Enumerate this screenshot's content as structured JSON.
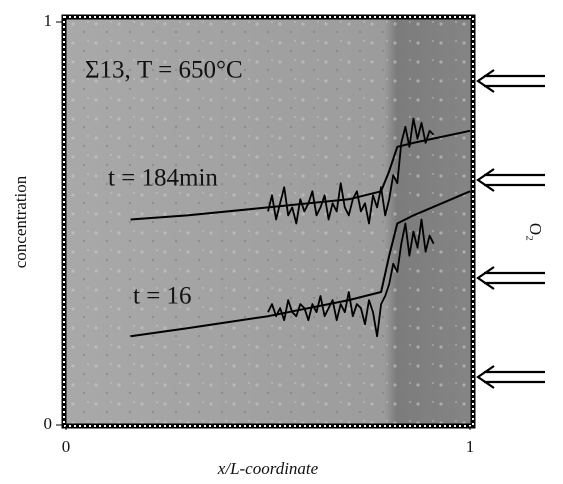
{
  "chart_data": {
    "type": "line",
    "annotations": [
      "Σ13, T = 650°C",
      "t = 184min",
      "t = 16"
    ],
    "xlabel": "x/L-coordinate",
    "ylabel": "concentration",
    "y2label": "O₂",
    "xlim": [
      0,
      1
    ],
    "ylim": [
      0,
      1
    ],
    "xticks": [
      0,
      1
    ],
    "yticks": [
      0,
      1
    ],
    "series": [
      {
        "color": "#000000",
        "x": [
          0.16,
          0.3,
          0.5,
          0.7,
          0.78,
          0.8,
          0.82,
          0.86,
          1.0
        ],
        "values": [
          0.51,
          0.52,
          0.54,
          0.56,
          0.58,
          0.63,
          0.69,
          0.7,
          0.73
        ]
      },
      {
        "color": "#000000",
        "x": [
          0.16,
          0.3,
          0.5,
          0.7,
          0.78,
          0.8,
          0.82,
          0.86,
          1.0
        ],
        "values": [
          0.22,
          0.24,
          0.27,
          0.31,
          0.33,
          0.42,
          0.5,
          0.52,
          0.58
        ]
      },
      {
        "color": "#000000",
        "x": [
          0.5,
          0.51,
          0.52,
          0.53,
          0.54,
          0.55,
          0.56,
          0.57,
          0.58,
          0.59,
          0.6,
          0.61,
          0.62,
          0.63,
          0.64,
          0.65,
          0.66,
          0.67,
          0.68,
          0.69,
          0.7,
          0.71,
          0.72,
          0.73,
          0.74,
          0.75,
          0.76,
          0.77,
          0.78,
          0.79,
          0.8,
          0.81,
          0.82,
          0.83,
          0.84,
          0.85,
          0.86,
          0.87,
          0.88,
          0.89,
          0.9,
          0.91
        ],
        "values": [
          0.53,
          0.57,
          0.51,
          0.55,
          0.59,
          0.52,
          0.54,
          0.5,
          0.56,
          0.53,
          0.55,
          0.58,
          0.52,
          0.54,
          0.57,
          0.51,
          0.55,
          0.53,
          0.6,
          0.54,
          0.52,
          0.56,
          0.58,
          0.53,
          0.55,
          0.5,
          0.57,
          0.54,
          0.59,
          0.52,
          0.56,
          0.62,
          0.6,
          0.7,
          0.74,
          0.69,
          0.76,
          0.71,
          0.75,
          0.7,
          0.73,
          0.72
        ]
      },
      {
        "color": "#000000",
        "x": [
          0.5,
          0.51,
          0.52,
          0.53,
          0.54,
          0.55,
          0.56,
          0.57,
          0.58,
          0.59,
          0.6,
          0.61,
          0.62,
          0.63,
          0.64,
          0.65,
          0.66,
          0.67,
          0.68,
          0.69,
          0.7,
          0.71,
          0.72,
          0.73,
          0.74,
          0.75,
          0.76,
          0.77,
          0.78,
          0.79,
          0.8,
          0.81,
          0.82,
          0.83,
          0.84,
          0.85,
          0.86,
          0.87,
          0.88,
          0.89,
          0.9,
          0.91
        ],
        "values": [
          0.28,
          0.3,
          0.27,
          0.29,
          0.26,
          0.31,
          0.28,
          0.27,
          0.3,
          0.29,
          0.26,
          0.3,
          0.28,
          0.32,
          0.27,
          0.29,
          0.31,
          0.26,
          0.3,
          0.28,
          0.33,
          0.27,
          0.3,
          0.29,
          0.25,
          0.31,
          0.28,
          0.22,
          0.3,
          0.32,
          0.35,
          0.4,
          0.38,
          0.45,
          0.5,
          0.42,
          0.48,
          0.44,
          0.51,
          0.43,
          0.47,
          0.45
        ]
      }
    ]
  }
}
